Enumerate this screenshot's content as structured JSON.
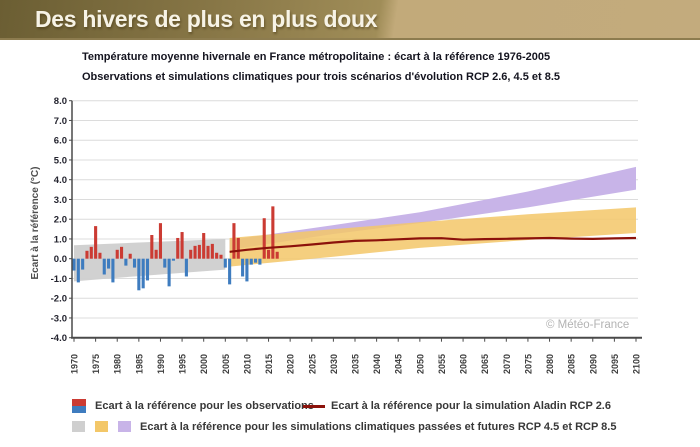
{
  "banner": {
    "title": "Des hivers de plus en plus doux"
  },
  "chart": {
    "title_line1": "Température moyenne hivernale en France métropolitaine : écart à la référence 1976-2005",
    "title_line2": "Observations et simulations climatiques pour trois scénarios d'évolution RCP 2.6, 4.5 et 8.5",
    "watermark": "© Météo-France"
  },
  "legend": {
    "observations_label": "Ecart à la référence pour les observations",
    "simulation_label": "Ecart à la référence pour la simulation Aladin RCP 2.6",
    "bands_label": "Ecart à la référence pour les simulations climatiques passées et futures RCP 4.5 et RCP 8.5"
  },
  "colors": {
    "bar_positive": "#cb3b33",
    "bar_negative": "#3e7cbf",
    "simulation_line": "#8c120b",
    "band_past": "#cfcfcf",
    "band_rcp45": "#f3c768",
    "band_rcp85": "#c8b4e8",
    "gridline": "#dcdcdc",
    "spine": "#4a4a4a",
    "tick_label": "#23232e",
    "x_tick_label": "#3f3f3f"
  },
  "chart_data": {
    "type": "bar",
    "title": "Température moyenne hivernale en France métropolitaine : écart à la référence 1976-2005",
    "xlabel": "",
    "ylabel": "Ecart à la référence (°C)",
    "ylim": [
      -4.0,
      8.0
    ],
    "xlim": [
      1969,
      2101
    ],
    "grid": true,
    "y_ticks": [
      8.0,
      7.0,
      6.0,
      5.0,
      4.0,
      3.0,
      2.0,
      1.0,
      0.0,
      -1.0,
      -2.0,
      -3.0,
      -4.0
    ],
    "x_ticks": [
      1970,
      1975,
      1980,
      1985,
      1990,
      1995,
      2000,
      2005,
      2010,
      2015,
      2020,
      2025,
      2030,
      2035,
      2040,
      2045,
      2050,
      2055,
      2060,
      2065,
      2070,
      2075,
      2080,
      2085,
      2090,
      2095,
      2100
    ],
    "observations": {
      "name": "Ecart à la référence pour les observations",
      "years": [
        1970,
        1971,
        1972,
        1973,
        1974,
        1975,
        1976,
        1977,
        1978,
        1979,
        1980,
        1981,
        1982,
        1983,
        1984,
        1985,
        1986,
        1987,
        1988,
        1989,
        1990,
        1991,
        1992,
        1993,
        1994,
        1995,
        1996,
        1997,
        1998,
        1999,
        2000,
        2001,
        2002,
        2003,
        2004,
        2005,
        2006,
        2007,
        2008,
        2009,
        2010,
        2011,
        2012,
        2013,
        2014,
        2015,
        2016,
        2017
      ],
      "values": [
        -0.6,
        -1.2,
        -0.55,
        0.4,
        0.6,
        1.65,
        0.3,
        -0.8,
        -0.5,
        -1.2,
        0.45,
        0.6,
        -0.35,
        0.25,
        -0.45,
        -1.6,
        -1.5,
        -1.1,
        1.2,
        0.45,
        1.8,
        -0.45,
        -1.4,
        -0.1,
        1.05,
        1.35,
        -0.9,
        0.45,
        0.65,
        0.7,
        1.3,
        0.65,
        0.75,
        0.3,
        0.2,
        -0.45,
        -1.3,
        1.8,
        1.05,
        -0.9,
        -1.15,
        -0.3,
        -0.2,
        -0.3,
        2.05,
        0.45,
        2.65,
        0.35
      ]
    },
    "series": [
      {
        "name": "Ecart à la référence pour la simulation Aladin RCP 2.6",
        "style": "line",
        "points": [
          [
            2006,
            0.35
          ],
          [
            2010,
            0.45
          ],
          [
            2015,
            0.55
          ],
          [
            2020,
            0.63
          ],
          [
            2025,
            0.72
          ],
          [
            2030,
            0.82
          ],
          [
            2035,
            0.9
          ],
          [
            2040,
            0.93
          ],
          [
            2045,
            0.98
          ],
          [
            2050,
            1.03
          ],
          [
            2055,
            1.04
          ],
          [
            2060,
            0.96
          ],
          [
            2065,
            0.99
          ],
          [
            2070,
            1.01
          ],
          [
            2075,
            1.03
          ],
          [
            2080,
            1.05
          ],
          [
            2085,
            1.02
          ],
          [
            2090,
            1.0
          ],
          [
            2095,
            1.03
          ],
          [
            2100,
            1.05
          ]
        ]
      }
    ],
    "bands": [
      {
        "name": "simulations passées (gris)",
        "top": [
          [
            1970,
            0.68
          ],
          [
            1985,
            0.82
          ],
          [
            2005,
            1.0
          ]
        ],
        "bottom": [
          [
            1970,
            -1.15
          ],
          [
            1985,
            -0.88
          ],
          [
            2005,
            -0.55
          ]
        ]
      },
      {
        "name": "simulations futures RCP 8.5 (violet)",
        "top": [
          [
            2006,
            0.95
          ],
          [
            2030,
            1.7
          ],
          [
            2050,
            2.35
          ],
          [
            2075,
            3.4
          ],
          [
            2100,
            4.65
          ]
        ],
        "bottom": [
          [
            2006,
            0.45
          ],
          [
            2030,
            1.25
          ],
          [
            2050,
            1.8
          ],
          [
            2075,
            2.6
          ],
          [
            2100,
            3.5
          ]
        ]
      },
      {
        "name": "simulations futures RCP 4.5 (jaune)",
        "top": [
          [
            2006,
            1.05
          ],
          [
            2030,
            1.5
          ],
          [
            2050,
            1.85
          ],
          [
            2075,
            2.25
          ],
          [
            2100,
            2.6
          ]
        ],
        "bottom": [
          [
            2006,
            -0.4
          ],
          [
            2030,
            0.1
          ],
          [
            2050,
            0.55
          ],
          [
            2075,
            0.95
          ],
          [
            2100,
            1.3
          ]
        ]
      }
    ],
    "legend_position": "bottom"
  }
}
